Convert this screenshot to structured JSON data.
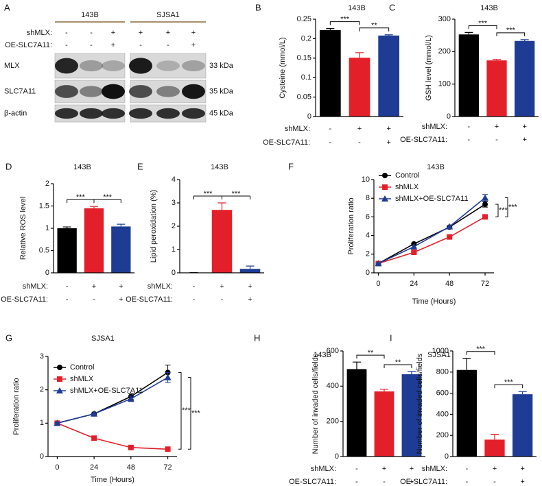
{
  "blot": {
    "panel": "A",
    "cell_lines": [
      "143B",
      "SJSA1"
    ],
    "conditions": [
      {
        "label": "shMLX:",
        "marks": [
          "-",
          "-",
          "+",
          "+",
          "+",
          "+"
        ]
      },
      {
        "label": "OE-SLC7A11:",
        "marks": [
          "-",
          "-",
          "+",
          "-",
          "-",
          "+"
        ]
      }
    ],
    "bands": [
      {
        "name": "MLX",
        "size": "33 kDa"
      },
      {
        "name": "SLC7A11",
        "size": "35 kDa"
      },
      {
        "name": "β-actin",
        "size": "45 kDa"
      }
    ]
  },
  "chart_data": [
    {
      "type": "bar",
      "panel": "B",
      "title": "143B",
      "ylabel": "Cysteine  (mmol/L)",
      "values": [
        0.222,
        0.151,
        0.208
      ],
      "errors": [
        0.004,
        0.013,
        0.002
      ],
      "colors": [
        "#000000",
        "#e3202a",
        "#1e3c94"
      ],
      "ylim": [
        0,
        0.25
      ],
      "yticks": [
        0,
        0.05,
        0.1,
        0.15,
        0.2,
        0.25
      ],
      "conditions": [
        {
          "label": "shMLX:",
          "marks": [
            "-",
            "+",
            "+"
          ]
        },
        {
          "label": "OE-SLC7A11:",
          "marks": [
            "-",
            "-",
            "+"
          ]
        }
      ],
      "annotations": [
        "***",
        "**"
      ]
    },
    {
      "type": "bar",
      "panel": "C",
      "title": "143B",
      "ylabel": "GSH level (mmol/L)",
      "values": [
        253,
        173,
        233
      ],
      "errors": [
        6,
        3,
        4
      ],
      "colors": [
        "#000000",
        "#e3202a",
        "#1e3c94"
      ],
      "ylim": [
        0,
        300
      ],
      "yticks": [
        0,
        100,
        200,
        300
      ],
      "conditions": [
        {
          "label": "shMLX:",
          "marks": [
            "-",
            "+",
            "+"
          ]
        },
        {
          "label": "OE-SLC7A11:",
          "marks": [
            "-",
            "-",
            "+"
          ]
        }
      ],
      "annotations": [
        "***",
        "***"
      ]
    },
    {
      "type": "bar",
      "panel": "D",
      "title": "143B",
      "ylabel": "Relative ROS level",
      "values": [
        1.0,
        1.45,
        1.04
      ],
      "errors": [
        0.03,
        0.04,
        0.05
      ],
      "colors": [
        "#000000",
        "#e3202a",
        "#1e3c94"
      ],
      "ylim": [
        0,
        2
      ],
      "yticks": [
        0,
        0.5,
        1,
        1.5,
        2
      ],
      "conditions": [
        {
          "label": "shMLX:",
          "marks": [
            "-",
            "+",
            "+"
          ]
        },
        {
          "label": "OE-SLC7A11:",
          "marks": [
            "-",
            "-",
            "+"
          ]
        }
      ],
      "annotations": [
        "***",
        "***"
      ]
    },
    {
      "type": "bar",
      "panel": "E",
      "title": "143B",
      "ylabel": "Lipid peroxidation  (%)",
      "values": [
        0.01,
        2.7,
        0.17
      ],
      "errors": [
        0,
        0.3,
        0.12
      ],
      "colors": [
        "#000000",
        "#e3202a",
        "#1e3c94"
      ],
      "ylim": [
        0,
        4
      ],
      "yticks": [
        0,
        1,
        2,
        3,
        4
      ],
      "conditions": [
        {
          "label": "shMLX:",
          "marks": [
            "-",
            "+",
            "+"
          ]
        },
        {
          "label": "OE-SLC7A11:",
          "marks": [
            "-",
            "-",
            "+"
          ]
        }
      ],
      "annotations": [
        "***",
        "***"
      ]
    },
    {
      "type": "line",
      "panel": "F",
      "title": "143B",
      "ylabel": "Proliferation ratio",
      "xlabel": "Time (Hours)",
      "x": [
        0,
        24,
        48,
        72
      ],
      "xlim": [
        -3,
        78
      ],
      "xticks": [
        0,
        24,
        48,
        72
      ],
      "ylim": [
        0,
        10
      ],
      "yticks": [
        0,
        2,
        4,
        6,
        8,
        10
      ],
      "series": [
        {
          "name": "Control",
          "color": "#000000",
          "marker": "circle",
          "values": [
            1.0,
            3.1,
            4.9,
            7.35
          ],
          "errors": [
            0.05,
            0.1,
            0.1,
            0.3
          ]
        },
        {
          "name": "shMLX",
          "color": "#e3202a",
          "marker": "square",
          "values": [
            1.0,
            2.2,
            3.85,
            6.0
          ],
          "errors": [
            0.05,
            0.08,
            0.08,
            0.1
          ]
        },
        {
          "name": "shMLX+OE-SLC7A11",
          "color": "#1e3c94",
          "marker": "triangle",
          "values": [
            1.0,
            2.8,
            4.95,
            8.05
          ],
          "errors": [
            0.05,
            0.1,
            0.1,
            0.35
          ]
        }
      ],
      "annotations": [
        "***",
        "***"
      ]
    },
    {
      "type": "line",
      "panel": "G",
      "title": "SJSA1",
      "ylabel": "Proliferation ratio",
      "xlabel": "Time (Hours)",
      "x": [
        0,
        24,
        48,
        72
      ],
      "xlim": [
        -6,
        78
      ],
      "xticks": [
        0,
        24,
        48,
        72
      ],
      "ylim": [
        0,
        3
      ],
      "yticks": [
        0,
        1,
        2,
        3
      ],
      "series": [
        {
          "name": "Control",
          "color": "#000000",
          "marker": "circle",
          "values": [
            1.0,
            1.28,
            1.8,
            2.52
          ],
          "errors": [
            0.02,
            0.03,
            0.08,
            0.22
          ]
        },
        {
          "name": "shMLX",
          "color": "#e3202a",
          "marker": "square",
          "values": [
            1.0,
            0.55,
            0.27,
            0.22
          ],
          "errors": [
            0.02,
            0.02,
            0.02,
            0.02
          ]
        },
        {
          "name": "shMLX+OE-SLC7A11",
          "color": "#1e3c94",
          "marker": "triangle",
          "values": [
            1.0,
            1.28,
            1.73,
            2.37
          ],
          "errors": [
            0.02,
            0.03,
            0.08,
            0.15
          ]
        }
      ],
      "annotations": [
        "***",
        "***"
      ]
    },
    {
      "type": "bar",
      "panel": "H",
      "title": "143B",
      "ylabel": "Number of invaded cells/fields",
      "values": [
        497,
        370,
        468
      ],
      "errors": [
        40,
        12,
        15
      ],
      "colors": [
        "#000000",
        "#e3202a",
        "#1e3c94"
      ],
      "ylim": [
        0,
        600
      ],
      "yticks": [
        0,
        200,
        400,
        600
      ],
      "conditions": [
        {
          "label": "shMLX:",
          "marks": [
            "-",
            "+",
            "+"
          ]
        },
        {
          "label": "OE-SLC7A11:",
          "marks": [
            "-",
            "-",
            "+"
          ]
        }
      ],
      "annotations": [
        "**",
        "**"
      ]
    },
    {
      "type": "bar",
      "panel": "I",
      "title": "SJSA1",
      "ylabel": "Number of invaded cells/fields",
      "values": [
        820,
        160,
        590
      ],
      "errors": [
        110,
        50,
        25
      ],
      "colors": [
        "#000000",
        "#e3202a",
        "#1e3c94"
      ],
      "ylim": [
        0,
        1000
      ],
      "yticks": [
        0,
        200,
        400,
        600,
        800,
        1000
      ],
      "conditions": [
        {
          "label": "shMLX:",
          "marks": [
            "-",
            "+",
            "+"
          ]
        },
        {
          "label": "OE-SLC7A11:",
          "marks": [
            "-",
            "-",
            "+"
          ]
        }
      ],
      "annotations": [
        "***",
        "***"
      ]
    }
  ]
}
